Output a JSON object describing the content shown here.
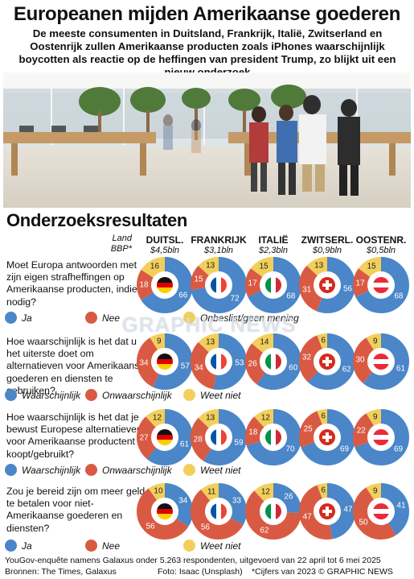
{
  "title": "Europeanen mijden Amerikaanse goederen",
  "subtitle": "De meeste consumenten in Duitsland, Frankrijk, Italië, Zwitserland en Oostenrijk zullen Amerikaanse producten zoals iPhones waarschijnlijk boycotten als reactie op de heffingen van president Trump, zo blijkt uit een nieuw onderzoek",
  "section_title": "Onderzoeksresultaten",
  "header": {
    "land_label": "Land",
    "gdp_label": "BBP*"
  },
  "countries": [
    {
      "name": "DUITSL.",
      "gdp": "$4,5bln",
      "flag": "germany-flag-icon"
    },
    {
      "name": "FRANKRIJK",
      "gdp": "$3,1bln",
      "flag": "france-flag-icon"
    },
    {
      "name": "ITALIË",
      "gdp": "$2,3bln",
      "flag": "italy-flag-icon"
    },
    {
      "name": "ZWITSERL.",
      "gdp": "$0,9bln",
      "flag": "switzerland-flag-icon"
    },
    {
      "name": "OOSTENR.",
      "gdp": "$0,5bln",
      "flag": "austria-flag-icon"
    }
  ],
  "colors": {
    "blue": "#4a86c8",
    "red": "#d95a43",
    "yellow": "#f2cf5b"
  },
  "chart_data": {
    "type": "pie",
    "questions": [
      {
        "text": "Moet Europa antwoorden met zijn eigen strafheffingen op Amerikaanse producten, indien nodig?",
        "legend": [
          "Ja",
          "Nee",
          "Onbeslist/geen mening"
        ],
        "values": [
          [
            66,
            18,
            16
          ],
          [
            72,
            15,
            13
          ],
          [
            68,
            17,
            15
          ],
          [
            56,
            31,
            13
          ],
          [
            68,
            17,
            15
          ]
        ]
      },
      {
        "text": "Hoe waarschijnlijk is het dat u het uiterste doet om alternatieven voor Amerikaanse goederen en diensten te gebruiken?",
        "legend": [
          "Waarschijnlijk",
          "Onwaarschijnlijk",
          "Weet niet"
        ],
        "values": [
          [
            57,
            34,
            9
          ],
          [
            53,
            34,
            13
          ],
          [
            60,
            26,
            14
          ],
          [
            62,
            32,
            6
          ],
          [
            61,
            30,
            9
          ]
        ]
      },
      {
        "text": "Hoe waarschijnlijk is het dat je bewust Europese alternatieven voor Amerikaanse productent koopt/gebruikt?",
        "legend": [
          "Waarschijnlijk",
          "Onwaarschijnlijk",
          "Weet niet"
        ],
        "values": [
          [
            61,
            27,
            12
          ],
          [
            59,
            28,
            13
          ],
          [
            70,
            18,
            12
          ],
          [
            69,
            25,
            6
          ],
          [
            69,
            22,
            9
          ]
        ]
      },
      {
        "text": "Zou je bereid zijn om meer geld te betalen voor niet-Amerikaanse goederen en diensten?",
        "legend": [
          "Ja",
          "Nee",
          "Weet niet"
        ],
        "values": [
          [
            34,
            56,
            10
          ],
          [
            33,
            56,
            11
          ],
          [
            26,
            62,
            12
          ],
          [
            47,
            47,
            6
          ],
          [
            41,
            50,
            9
          ]
        ]
      }
    ]
  },
  "watermark": "GRAPHIC NEWS",
  "footer": {
    "survey": "YouGov-enquête namens Galaxus onder 5.263 respondenten, uitgevoerd van 22 april tot 6 mei 2025",
    "sources": "Bronnen: The Times, Galaxus",
    "photo": "Foto: Isaac (Unsplash)",
    "note": "*Cijfers van 2023",
    "copyright": "© GRAPHIC NEWS"
  }
}
